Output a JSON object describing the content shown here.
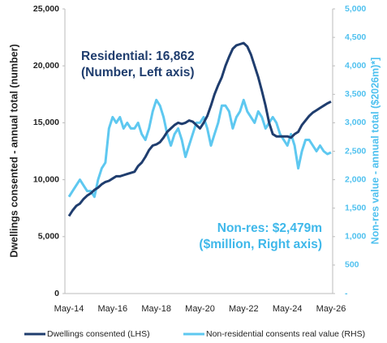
{
  "chart_data": {
    "type": "line",
    "y_label": "Dwellings consented - annual total (number)",
    "y2_label": "Non-res value - annual total ($2026m)*]",
    "categories": [
      "May-14",
      null,
      null,
      null,
      null,
      null,
      null,
      null,
      null,
      null,
      null,
      null,
      "May-16",
      null,
      null,
      null,
      null,
      null,
      null,
      null,
      null,
      null,
      null,
      null,
      "May-18",
      null,
      null,
      null,
      null,
      null,
      null,
      null,
      null,
      null,
      null,
      null,
      "May-20",
      null,
      null,
      null,
      null,
      null,
      null,
      null,
      null,
      null,
      null,
      null,
      "May-22",
      null,
      null,
      null,
      null,
      null,
      null,
      null,
      null,
      null,
      null,
      null,
      "May-24",
      null,
      null,
      null,
      null,
      null,
      null,
      null,
      null,
      null,
      null,
      null,
      "May-26"
    ],
    "series": [
      {
        "name": "Dwellings consented (LHS)",
        "color": "#1f3d6e",
        "axis": "y",
        "values": [
          6800,
          7300,
          7700,
          7900,
          8300,
          8600,
          8800,
          9100,
          9300,
          9600,
          9800,
          9900,
          10100,
          10300,
          10300,
          10400,
          10500,
          10600,
          10700,
          11200,
          11500,
          12000,
          12600,
          13000,
          13100,
          13300,
          13700,
          14200,
          14500,
          14800,
          15000,
          14900,
          15000,
          15200,
          15100,
          14800,
          14500,
          15000,
          15600,
          16500,
          17500,
          18300,
          19000,
          20000,
          20800,
          21500,
          21800,
          21900,
          22000,
          21700,
          21000,
          20000,
          19000,
          17800,
          16500,
          15000,
          14000,
          13800,
          13800,
          13800,
          13800,
          13700,
          14000,
          14200,
          14800,
          15200,
          15600,
          15900,
          16100,
          16300,
          16500,
          16700,
          16862
        ]
      },
      {
        "name": "Non-residential consents real value (RHS)",
        "color": "#5ec8f0",
        "axis": "y2",
        "values": [
          1700,
          1800,
          1900,
          2000,
          1900,
          1800,
          1800,
          1700,
          2000,
          2200,
          2300,
          2900,
          3100,
          3000,
          3100,
          2900,
          3000,
          2900,
          2900,
          3000,
          2800,
          2700,
          2900,
          3200,
          3400,
          3300,
          3100,
          2800,
          2600,
          2800,
          2900,
          2700,
          2400,
          2600,
          2800,
          3000,
          3000,
          3100,
          2900,
          2600,
          2800,
          3000,
          3300,
          3300,
          3200,
          2900,
          3100,
          3200,
          3400,
          3200,
          3100,
          3000,
          3200,
          3100,
          2900,
          3000,
          3100,
          3000,
          2800,
          2700,
          2600,
          2800,
          2600,
          2200,
          2500,
          2700,
          2700,
          2600,
          2500,
          2600,
          2500,
          2450,
          2479
        ]
      }
    ],
    "ylim": [
      0,
      25000
    ],
    "yticks": [
      0,
      {
        "value": 5000,
        "label": "5,000"
      },
      {
        "value": 10000,
        "label": "10,000"
      },
      {
        "value": 15000,
        "label": "15,000"
      },
      {
        "value": 20000,
        "label": "20,000"
      },
      {
        "value": 25000,
        "label": "25,000"
      }
    ],
    "y2lim": [
      0,
      5000
    ],
    "y2ticks": [
      {
        "value": 0,
        "label": "-"
      },
      500,
      {
        "value": 1000,
        "label": "1,000"
      },
      {
        "value": 1500,
        "label": "1,500"
      },
      {
        "value": 2000,
        "label": "2,000"
      },
      {
        "value": 2500,
        "label": "2,500"
      },
      {
        "value": 3000,
        "label": "3,000"
      },
      {
        "value": 3500,
        "label": "3,500"
      },
      {
        "value": 4000,
        "label": "4,000"
      },
      {
        "value": 4500,
        "label": "4,500"
      },
      {
        "value": 5000,
        "label": "5,000"
      }
    ],
    "annotations": [
      {
        "lines": [
          "Residential: 16,862",
          "(Number, Left axis)"
        ],
        "color": "#1f3d6e"
      },
      {
        "lines": [
          "Non-res: $2,479m",
          "($million, Right axis)"
        ],
        "color": "#3fb8ea"
      }
    ],
    "grid": false,
    "legend": "bottom"
  }
}
